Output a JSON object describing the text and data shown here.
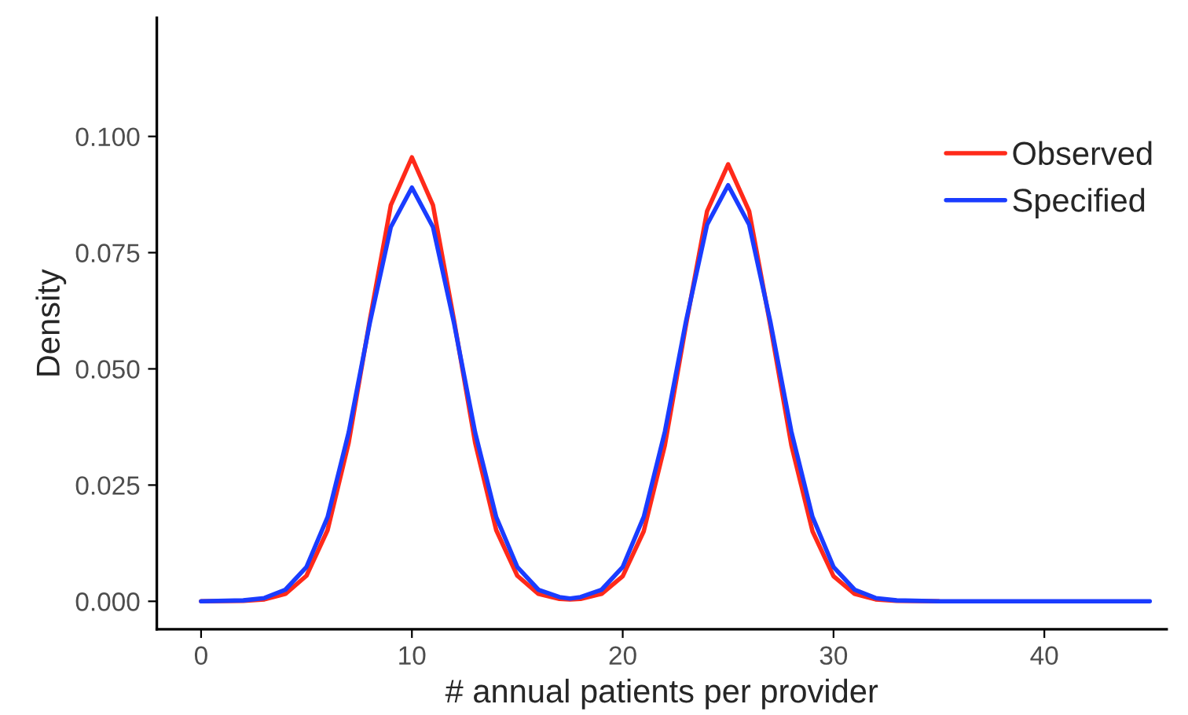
{
  "chart_data": {
    "type": "line",
    "xlabel": "# annual patients per provider",
    "ylabel": "Density",
    "x": [
      0,
      2,
      3,
      4,
      5,
      6,
      7,
      8,
      9,
      10,
      11,
      12,
      13,
      14,
      15,
      16,
      17,
      17.5,
      18,
      19,
      20,
      21,
      22,
      23,
      24,
      25,
      26,
      27,
      28,
      29,
      30,
      31,
      32,
      33,
      35,
      40,
      45
    ],
    "series": [
      {
        "name": "Observed",
        "color": "#ff2a1a",
        "values": [
          0,
          0.0001,
          0.0004,
          0.0016,
          0.0055,
          0.0153,
          0.0341,
          0.0604,
          0.0852,
          0.0955,
          0.0852,
          0.0604,
          0.0341,
          0.0153,
          0.0055,
          0.0016,
          0.0005,
          0.0004,
          0.0005,
          0.0016,
          0.0054,
          0.0151,
          0.0336,
          0.0594,
          0.0839,
          0.094,
          0.0839,
          0.0594,
          0.0336,
          0.0151,
          0.0054,
          0.0016,
          0.0004,
          0.0001,
          0,
          null,
          null
        ]
      },
      {
        "name": "Specified",
        "color": "#1a3cff",
        "values": [
          0,
          0.0002,
          0.0007,
          0.0025,
          0.0074,
          0.0181,
          0.0363,
          0.0598,
          0.0805,
          0.089,
          0.0805,
          0.0598,
          0.0363,
          0.0181,
          0.0074,
          0.0025,
          0.0009,
          0.0006,
          0.0009,
          0.0025,
          0.0074,
          0.0182,
          0.0365,
          0.0602,
          0.081,
          0.0895,
          0.081,
          0.0602,
          0.0365,
          0.0182,
          0.0074,
          0.0025,
          0.0007,
          0.0002,
          0,
          0,
          0
        ]
      }
    ],
    "xlim": [
      -2.1,
      45.8
    ],
    "xticks": [
      0,
      10,
      20,
      30,
      40
    ],
    "ylim": [
      -0.006,
      0.1255
    ],
    "yticks": [
      {
        "value": 0,
        "label": "0.000"
      },
      {
        "value": 0.025,
        "label": "0.025"
      },
      {
        "value": 0.05,
        "label": "0.050"
      },
      {
        "value": 0.075,
        "label": "0.075"
      },
      {
        "value": 0.1,
        "label": "0.100"
      }
    ],
    "legend": "right",
    "grid": false,
    "marker": "none",
    "line_style": "solid"
  }
}
